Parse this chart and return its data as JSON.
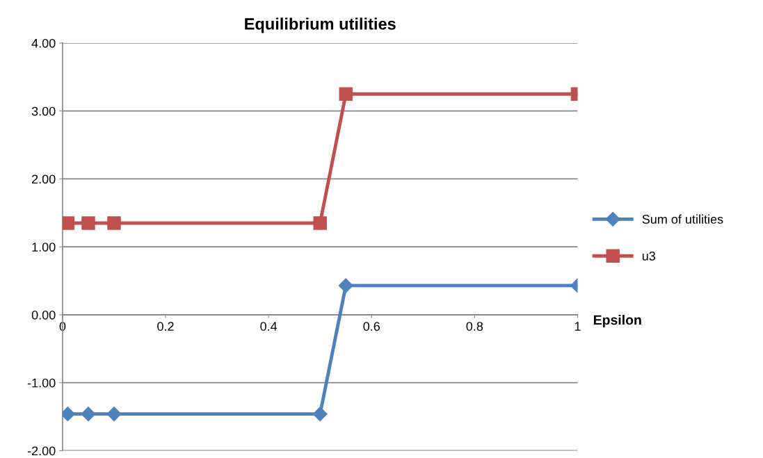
{
  "chart_data": {
    "type": "line",
    "title": "Equilibrium utilities",
    "xlabel": "Epsilon",
    "x": [
      0.01,
      0.05,
      0.1,
      0.5,
      0.55,
      1
    ],
    "series": [
      {
        "name": "Sum of utilities",
        "color": "#4f81bd",
        "marker": "diamond",
        "values": [
          -1.46,
          -1.46,
          -1.46,
          -1.46,
          0.43,
          0.43
        ]
      },
      {
        "name": "u3",
        "color": "#c0504d",
        "marker": "square",
        "values": [
          1.35,
          1.35,
          1.35,
          1.35,
          3.25,
          3.25
        ]
      }
    ],
    "xlim": [
      0,
      1
    ],
    "xticks": [
      0,
      0.2,
      0.4,
      0.6,
      0.8,
      1
    ],
    "ylim": [
      -2,
      4
    ],
    "yticks": [
      {
        "value": -2,
        "label": "-2.00"
      },
      {
        "value": -1,
        "label": "-1.00"
      },
      {
        "value": 0,
        "label": "0.00"
      },
      {
        "value": 1,
        "label": "1.00"
      },
      {
        "value": 2,
        "label": "2.00"
      },
      {
        "value": 3,
        "label": "3.00"
      },
      {
        "value": 4,
        "label": "4.00"
      }
    ],
    "grid": "y",
    "legend": "right",
    "line_style": "solid"
  }
}
